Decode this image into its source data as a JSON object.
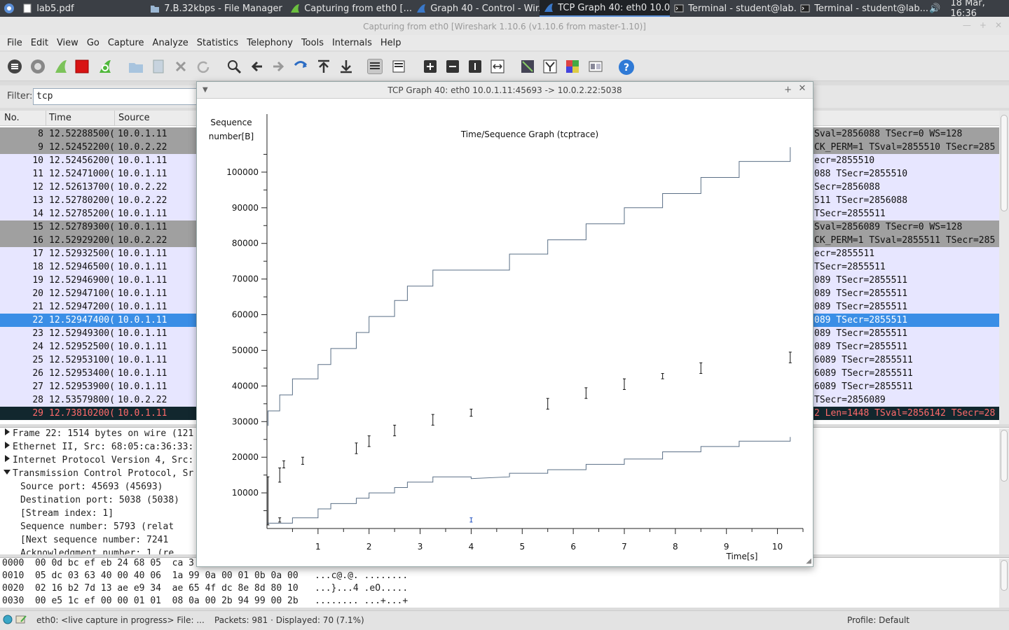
{
  "taskbar": {
    "tasks": [
      {
        "label": "lab5.pdf",
        "icon": "pdf-doc-icon"
      },
      {
        "label": "7.B.32kbps - File Manager",
        "icon": "folder-icon"
      },
      {
        "label": "Capturing from eth0   [...",
        "icon": "wireshark-fin-icon"
      },
      {
        "label": "Graph 40 - Control - Wir...",
        "icon": "wireshark-fin-icon"
      },
      {
        "label": "TCP Graph 40: eth0 10.0...",
        "icon": "wireshark-fin-icon",
        "active": true
      },
      {
        "label": "Terminal - student@lab...",
        "icon": "terminal-icon"
      },
      {
        "label": "Terminal - student@lab...",
        "icon": "terminal-icon"
      }
    ],
    "clock": "18 Mar, 16:36"
  },
  "window": {
    "title": "Capturing from eth0   [Wireshark 1.10.6  (v1.10.6 from master-1.10)]"
  },
  "menu": [
    "File",
    "Edit",
    "View",
    "Go",
    "Capture",
    "Analyze",
    "Statistics",
    "Telephony",
    "Tools",
    "Internals",
    "Help"
  ],
  "filter": {
    "label": "Filter:",
    "value": "tcp"
  },
  "packet_list": {
    "headers": {
      "no": "No.",
      "time": "Time",
      "source": "Source"
    },
    "rows": [
      {
        "no": "8",
        "time": "12.52288500(",
        "src": "10.0.1.11",
        "info": "Sval=2856088 TSecr=0 WS=128",
        "style": "gray"
      },
      {
        "no": "9",
        "time": "12.52452200(",
        "src": "10.0.2.22",
        "info": "CK_PERM=1 TSval=2855510 TSecr=285",
        "style": "gray"
      },
      {
        "no": "10",
        "time": "12.52456200(",
        "src": "10.0.1.11",
        "info": "ecr=2855510",
        "style": "lav"
      },
      {
        "no": "11",
        "time": "12.52471000(",
        "src": "10.0.1.11",
        "info": "088 TSecr=2855510",
        "style": "lav"
      },
      {
        "no": "12",
        "time": "12.52613700(",
        "src": "10.0.2.22",
        "info": "Secr=2856088",
        "style": "lav"
      },
      {
        "no": "13",
        "time": "12.52780200(",
        "src": "10.0.2.22",
        "info": "511 TSecr=2856088",
        "style": "lav"
      },
      {
        "no": "14",
        "time": "12.52785200(",
        "src": "10.0.1.11",
        "info": "TSecr=2855511",
        "style": "lav"
      },
      {
        "no": "15",
        "time": "12.52789300(",
        "src": "10.0.1.11",
        "info": "Sval=2856089 TSecr=0 WS=128",
        "style": "gray"
      },
      {
        "no": "16",
        "time": "12.52929200(",
        "src": "10.0.2.22",
        "info": "CK_PERM=1 TSval=2855511 TSecr=285",
        "style": "gray"
      },
      {
        "no": "17",
        "time": "12.52932500(",
        "src": "10.0.1.11",
        "info": "ecr=2855511",
        "style": "lav"
      },
      {
        "no": "18",
        "time": "12.52946500(",
        "src": "10.0.1.11",
        "info": " TSecr=2855511",
        "style": "lav"
      },
      {
        "no": "19",
        "time": "12.52946900(",
        "src": "10.0.1.11",
        "info": "089 TSecr=2855511",
        "style": "lav"
      },
      {
        "no": "20",
        "time": "12.52947100(",
        "src": "10.0.1.11",
        "info": "089 TSecr=2855511",
        "style": "lav"
      },
      {
        "no": "21",
        "time": "12.52947200(",
        "src": "10.0.1.11",
        "info": "089 TSecr=2855511",
        "style": "lav"
      },
      {
        "no": "22",
        "time": "12.52947400(",
        "src": "10.0.1.11",
        "info": "089 TSecr=2855511",
        "style": "sel"
      },
      {
        "no": "23",
        "time": "12.52949300(",
        "src": "10.0.1.11",
        "info": "089 TSecr=2855511",
        "style": "lav"
      },
      {
        "no": "24",
        "time": "12.52952500(",
        "src": "10.0.1.11",
        "info": "089 TSecr=2855511",
        "style": "lav"
      },
      {
        "no": "25",
        "time": "12.52953100(",
        "src": "10.0.1.11",
        "info": "6089 TSecr=2855511",
        "style": "lav"
      },
      {
        "no": "26",
        "time": "12.52953400(",
        "src": "10.0.1.11",
        "info": "6089 TSecr=2855511",
        "style": "lav"
      },
      {
        "no": "27",
        "time": "12.52953900(",
        "src": "10.0.1.11",
        "info": "6089 TSecr=2855511",
        "style": "lav"
      },
      {
        "no": "28",
        "time": "12.53579800(",
        "src": "10.0.2.22",
        "info": " TSecr=2856089",
        "style": "lav"
      },
      {
        "no": "29",
        "time": "12.73810200(",
        "src": "10.0.1.11",
        "info": "2 Len=1448 TSval=2856142 TSecr=28",
        "style": "dark"
      }
    ]
  },
  "details": [
    {
      "text": "Frame 22: 1514 bytes on wire (121",
      "arrow": "right",
      "indent": 0
    },
    {
      "text": "Ethernet II, Src: 68:05:ca:36:33:",
      "arrow": "right",
      "indent": 0
    },
    {
      "text": "Internet Protocol Version 4, Src:",
      "arrow": "right",
      "indent": 0
    },
    {
      "text": "Transmission Control Protocol, Sr",
      "arrow": "down",
      "indent": 0
    },
    {
      "text": "Source port: 45693 (45693)",
      "arrow": "",
      "indent": 1
    },
    {
      "text": "Destination port: 5038 (5038)",
      "arrow": "",
      "indent": 1
    },
    {
      "text": "[Stream index: 1]",
      "arrow": "",
      "indent": 1
    },
    {
      "text": "Sequence number: 5793    (relat",
      "arrow": "",
      "indent": 1
    },
    {
      "text": "[Next sequence number: 7241",
      "arrow": "",
      "indent": 1
    },
    {
      "text": "Acknowledgment number: 1    (re",
      "arrow": "",
      "indent": 1
    }
  ],
  "bytes": [
    "0000  00 0d bc ef eb 24 68 05  ca 3",
    "0010  05 dc 03 63 40 00 40 06  1a 99 0a 00 01 0b 0a 00   ...c@.@. ........",
    "0020  02 16 b2 7d 13 ae e9 34  ae 65 4f dc 8e 8d 80 10   ...}...4 .eO.....",
    "0030  00 e5 1c ef 00 00 01 01  08 0a 00 2b 94 99 00 2b   ........ ...+...+"
  ],
  "status": {
    "file": "eth0: <live capture in progress> File: ...",
    "packets": "Packets: 981 · Displayed: 70 (7.1%)",
    "profile": "Profile: Default"
  },
  "dialog": {
    "title": "TCP Graph 40: eth0 10.0.1.11:45693 -> 10.0.2.22:5038"
  },
  "chart_data": {
    "type": "line",
    "title": "Time/Sequence Graph (tcptrace)",
    "ylabel_line1": "Sequence",
    "ylabel_line2": "number[B]",
    "xlabel": "Time[s]",
    "xlim": [
      0,
      10.5
    ],
    "ylim": [
      0,
      110000
    ],
    "x_ticks": [
      1,
      2,
      3,
      4,
      5,
      6,
      7,
      8,
      9,
      10
    ],
    "y_ticks": [
      10000,
      20000,
      30000,
      40000,
      50000,
      60000,
      70000,
      80000,
      90000,
      100000
    ],
    "color": "#5a6f86",
    "series": [
      {
        "name": "",
        "kind": "step",
        "points": [
          [
            0.02,
            28800
          ],
          [
            0.02,
            33000
          ],
          [
            0.25,
            33000
          ],
          [
            0.25,
            37500
          ],
          [
            0.5,
            37500
          ],
          [
            0.5,
            42000
          ],
          [
            1.0,
            42000
          ],
          [
            1.0,
            46000
          ],
          [
            1.25,
            46000
          ],
          [
            1.25,
            50500
          ],
          [
            1.75,
            50500
          ],
          [
            1.75,
            55000
          ],
          [
            2.0,
            55000
          ],
          [
            2.0,
            59500
          ],
          [
            2.5,
            59500
          ],
          [
            2.5,
            64000
          ],
          [
            2.75,
            64000
          ],
          [
            2.75,
            68000
          ],
          [
            3.25,
            68000
          ],
          [
            3.25,
            72500
          ],
          [
            4.0,
            72500
          ],
          [
            4.0,
            72500
          ],
          [
            4.75,
            72500
          ],
          [
            4.75,
            77000
          ],
          [
            5.5,
            77000
          ],
          [
            5.5,
            81000
          ],
          [
            6.25,
            81000
          ],
          [
            6.25,
            85500
          ],
          [
            7.0,
            85500
          ],
          [
            7.0,
            90000
          ],
          [
            7.75,
            90000
          ],
          [
            7.75,
            94000
          ],
          [
            8.5,
            94000
          ],
          [
            8.5,
            98500
          ],
          [
            9.25,
            98500
          ],
          [
            9.25,
            103000
          ],
          [
            10.25,
            103000
          ],
          [
            10.25,
            107000
          ]
        ]
      },
      {
        "name": "",
        "kind": "step",
        "points": [
          [
            0.0,
            1500
          ],
          [
            0.5,
            1500
          ],
          [
            0.5,
            3000
          ],
          [
            1.0,
            3000
          ],
          [
            1.0,
            5500
          ],
          [
            1.25,
            5500
          ],
          [
            1.25,
            7000
          ],
          [
            1.75,
            7000
          ],
          [
            1.75,
            8500
          ],
          [
            2.0,
            8500
          ],
          [
            2.0,
            10000
          ],
          [
            2.5,
            10000
          ],
          [
            2.5,
            11500
          ],
          [
            2.75,
            11500
          ],
          [
            2.75,
            13000
          ],
          [
            3.25,
            13000
          ],
          [
            3.25,
            14500
          ],
          [
            4.0,
            14500
          ],
          [
            4.0,
            14000
          ],
          [
            4.75,
            14500
          ],
          [
            4.75,
            15500
          ],
          [
            5.5,
            15500
          ],
          [
            5.5,
            16500
          ],
          [
            6.25,
            16500
          ],
          [
            6.25,
            18000
          ],
          [
            7.0,
            18000
          ],
          [
            7.0,
            19500
          ],
          [
            7.75,
            19500
          ],
          [
            7.75,
            21500
          ],
          [
            8.5,
            21500
          ],
          [
            8.5,
            23000
          ],
          [
            9.25,
            23000
          ],
          [
            9.25,
            24500
          ],
          [
            10.25,
            24500
          ],
          [
            10.25,
            25700
          ]
        ]
      },
      {
        "name": "",
        "kind": "segments",
        "points": [
          [
            0.02,
            1000,
            14500
          ],
          [
            0.25,
            13000,
            17000
          ],
          [
            0.33,
            17000,
            19000
          ],
          [
            0.7,
            18000,
            20000
          ],
          [
            1.75,
            21000,
            24000
          ],
          [
            2.0,
            23000,
            26000
          ],
          [
            2.5,
            26000,
            29000
          ],
          [
            3.25,
            29000,
            32000
          ],
          [
            4.0,
            31500,
            33500
          ],
          [
            5.5,
            33500,
            36500
          ],
          [
            6.25,
            36500,
            39500
          ],
          [
            7.0,
            39000,
            42000
          ],
          [
            7.75,
            42000,
            43500
          ],
          [
            8.5,
            43500,
            46500
          ],
          [
            10.25,
            46500,
            49500
          ],
          [
            0.25,
            1800,
            3000
          ],
          [
            4.0,
            1800,
            3000
          ]
        ]
      }
    ]
  }
}
